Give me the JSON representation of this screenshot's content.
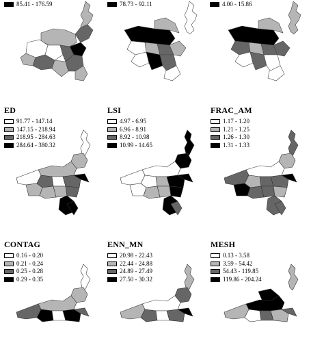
{
  "colors": {
    "c1": "#ffffff",
    "c2": "#b5b5b5",
    "c3": "#666666",
    "c4": "#000000"
  },
  "top_row_legends": [
    {
      "label": "85.41 - 176.59",
      "color": "#000000"
    },
    {
      "label": "78.73 - 92.11",
      "color": "#000000"
    },
    {
      "label": "4.00 - 15.86",
      "color": "#000000"
    }
  ],
  "panels": [
    {
      "title": "ED",
      "legend": [
        "91.77 - 147.14",
        "147.15 - 218.94",
        "218.95 - 284.63",
        "284.64 - 380.32"
      ]
    },
    {
      "title": "LSI",
      "legend": [
        "4.97 - 6.95",
        "6.96 - 8.91",
        "8.92 - 10.98",
        "10.99 - 14.65"
      ]
    },
    {
      "title": "FRAC_AM",
      "legend": [
        "1.17 - 1.20",
        "1.21 - 1.25",
        "1.26 - 1.30",
        "1.31 - 1.33"
      ]
    },
    {
      "title": "CONTAG",
      "legend": [
        "0.16 - 0.20",
        "0.21 - 0.24",
        "0.25 - 0.28",
        "0.29 - 0.35"
      ]
    },
    {
      "title": "ENN_MN",
      "legend": [
        "20.98 - 22.43",
        "22.44 - 24.88",
        "24.89 - 27.49",
        "27.50 - 30.32"
      ]
    },
    {
      "title": "MESH",
      "legend": [
        "0.13 - 3.58",
        "3.59 - 54.42",
        "54.43 - 119.85",
        "119.86 - 204.24"
      ]
    }
  ]
}
